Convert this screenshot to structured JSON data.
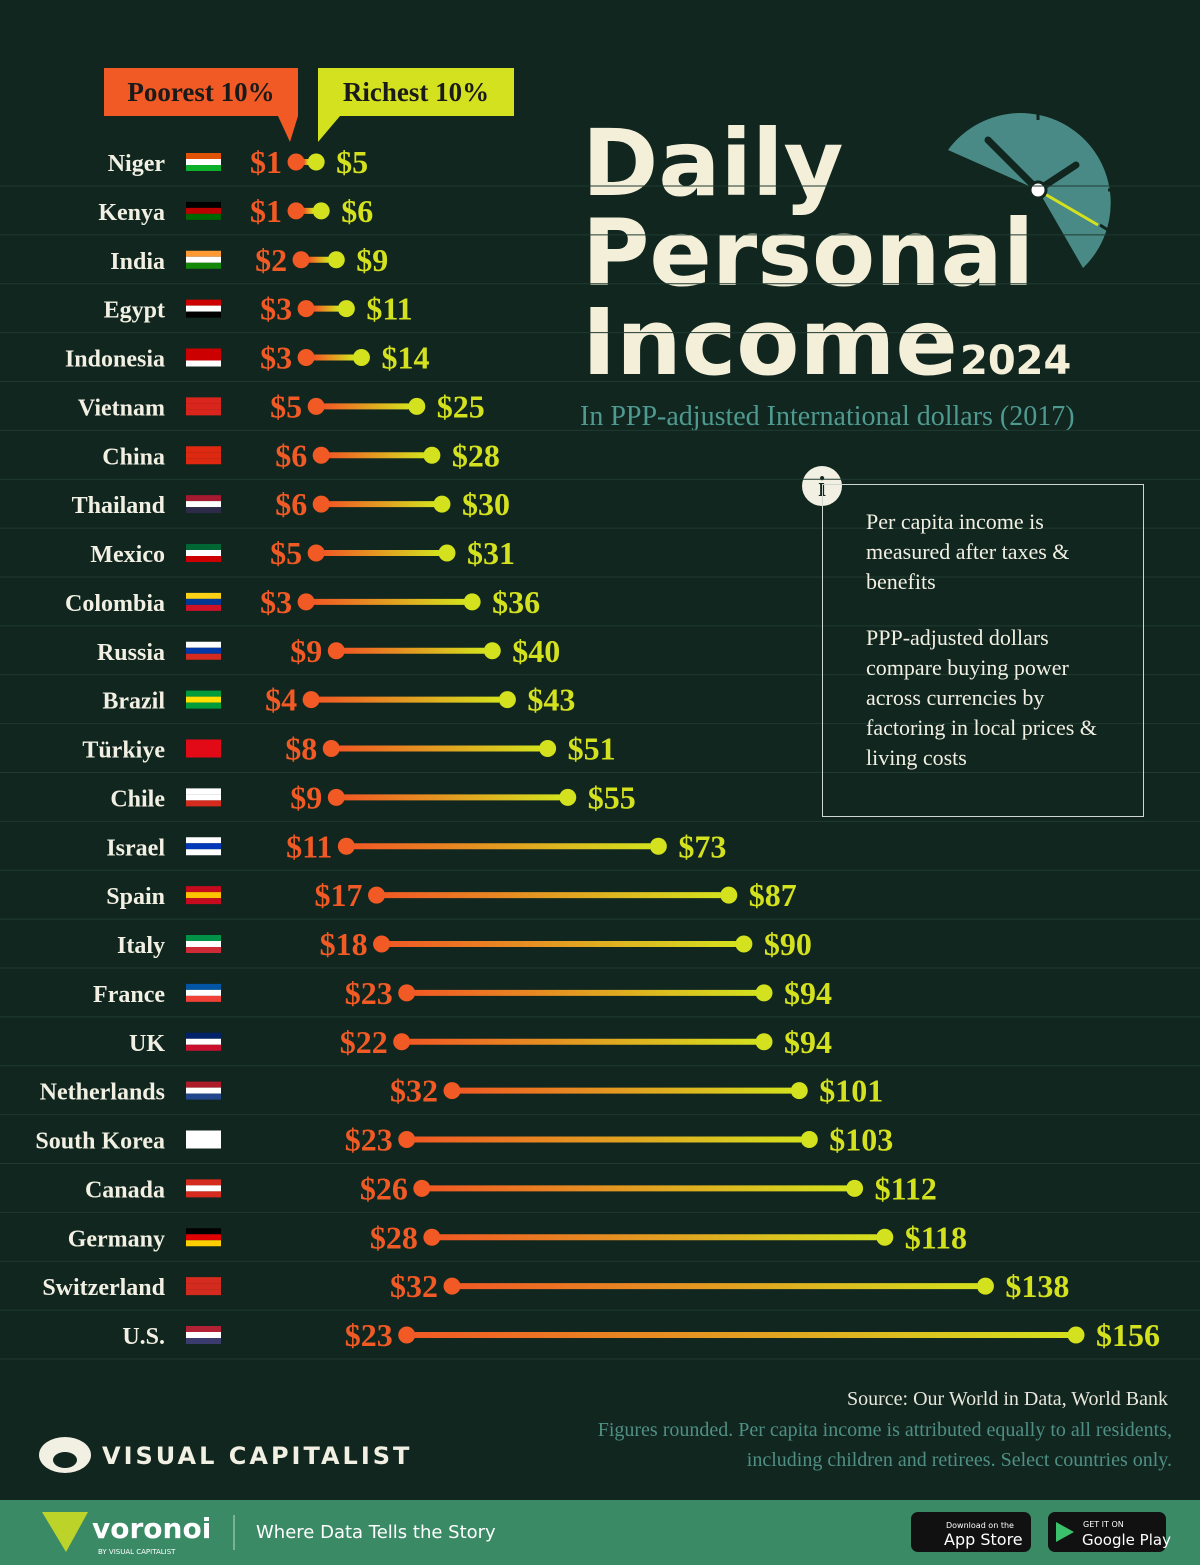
{
  "chart_data": {
    "type": "dumbbell",
    "title_lines": [
      "Daily",
      "Personal",
      "Income"
    ],
    "title_year": "2024",
    "subtitle": "In PPP-adjusted International dollars (2017)",
    "info_icon": "i",
    "info": [
      "Per capita income is measured after taxes & benefits",
      "PPP-adjusted dollars compare buying power across currencies by factoring in local prices & living costs"
    ],
    "categories": [
      "Niger",
      "Kenya",
      "India",
      "Egypt",
      "Indonesia",
      "Vietnam",
      "China",
      "Thailand",
      "Mexico",
      "Colombia",
      "Russia",
      "Brazil",
      "Türkiye",
      "Chile",
      "Israel",
      "Spain",
      "Italy",
      "France",
      "UK",
      "Netherlands",
      "South Korea",
      "Canada",
      "Germany",
      "Switzerland",
      "U.S."
    ],
    "series": [
      {
        "name": "Poorest 10%",
        "color": "#f15a24",
        "values": [
          1,
          1,
          2,
          3,
          3,
          5,
          6,
          6,
          5,
          3,
          9,
          4,
          8,
          9,
          11,
          17,
          18,
          23,
          22,
          32,
          23,
          26,
          28,
          32,
          23
        ],
        "value_labels": [
          "$1",
          "$1",
          "$2",
          "$3",
          "$3",
          "$5",
          "$6",
          "$6",
          "$5",
          "$3",
          "$9",
          "$4",
          "$8",
          "$9",
          "$11",
          "$17",
          "$18",
          "$23",
          "$22",
          "$32",
          "$23",
          "$26",
          "$28",
          "$32",
          "$23"
        ]
      },
      {
        "name": "Richest 10%",
        "color": "#d4e11e",
        "values": [
          5,
          6,
          9,
          11,
          14,
          25,
          28,
          30,
          31,
          36,
          40,
          43,
          51,
          55,
          73,
          87,
          90,
          94,
          94,
          101,
          103,
          112,
          118,
          138,
          156
        ],
        "value_labels": [
          "$5",
          "$6",
          "$9",
          "$11",
          "$14",
          "$25",
          "$28",
          "$30",
          "$31",
          "$36",
          "$40",
          "$43",
          "$51",
          "$55",
          "$73",
          "$87",
          "$90",
          "$94",
          "$94",
          "$101",
          "$103",
          "$112",
          "$118",
          "$138",
          "$156"
        ]
      }
    ],
    "source": "Source: Our World in Data, World Bank",
    "notes": [
      "Figures rounded. Per capita income is attributed equally to all residents,",
      "including children and retirees. Select countries only."
    ],
    "brand": "VISUAL CAPITALIST",
    "footer": {
      "logo": "voronoi",
      "logo_sub": "BY VISUAL CAPITALIST",
      "tagline": "Where Data Tells the Story",
      "app_store": [
        "Download on the",
        "App Store"
      ],
      "google_play": [
        "GET IT ON",
        "Google Play"
      ]
    }
  }
}
